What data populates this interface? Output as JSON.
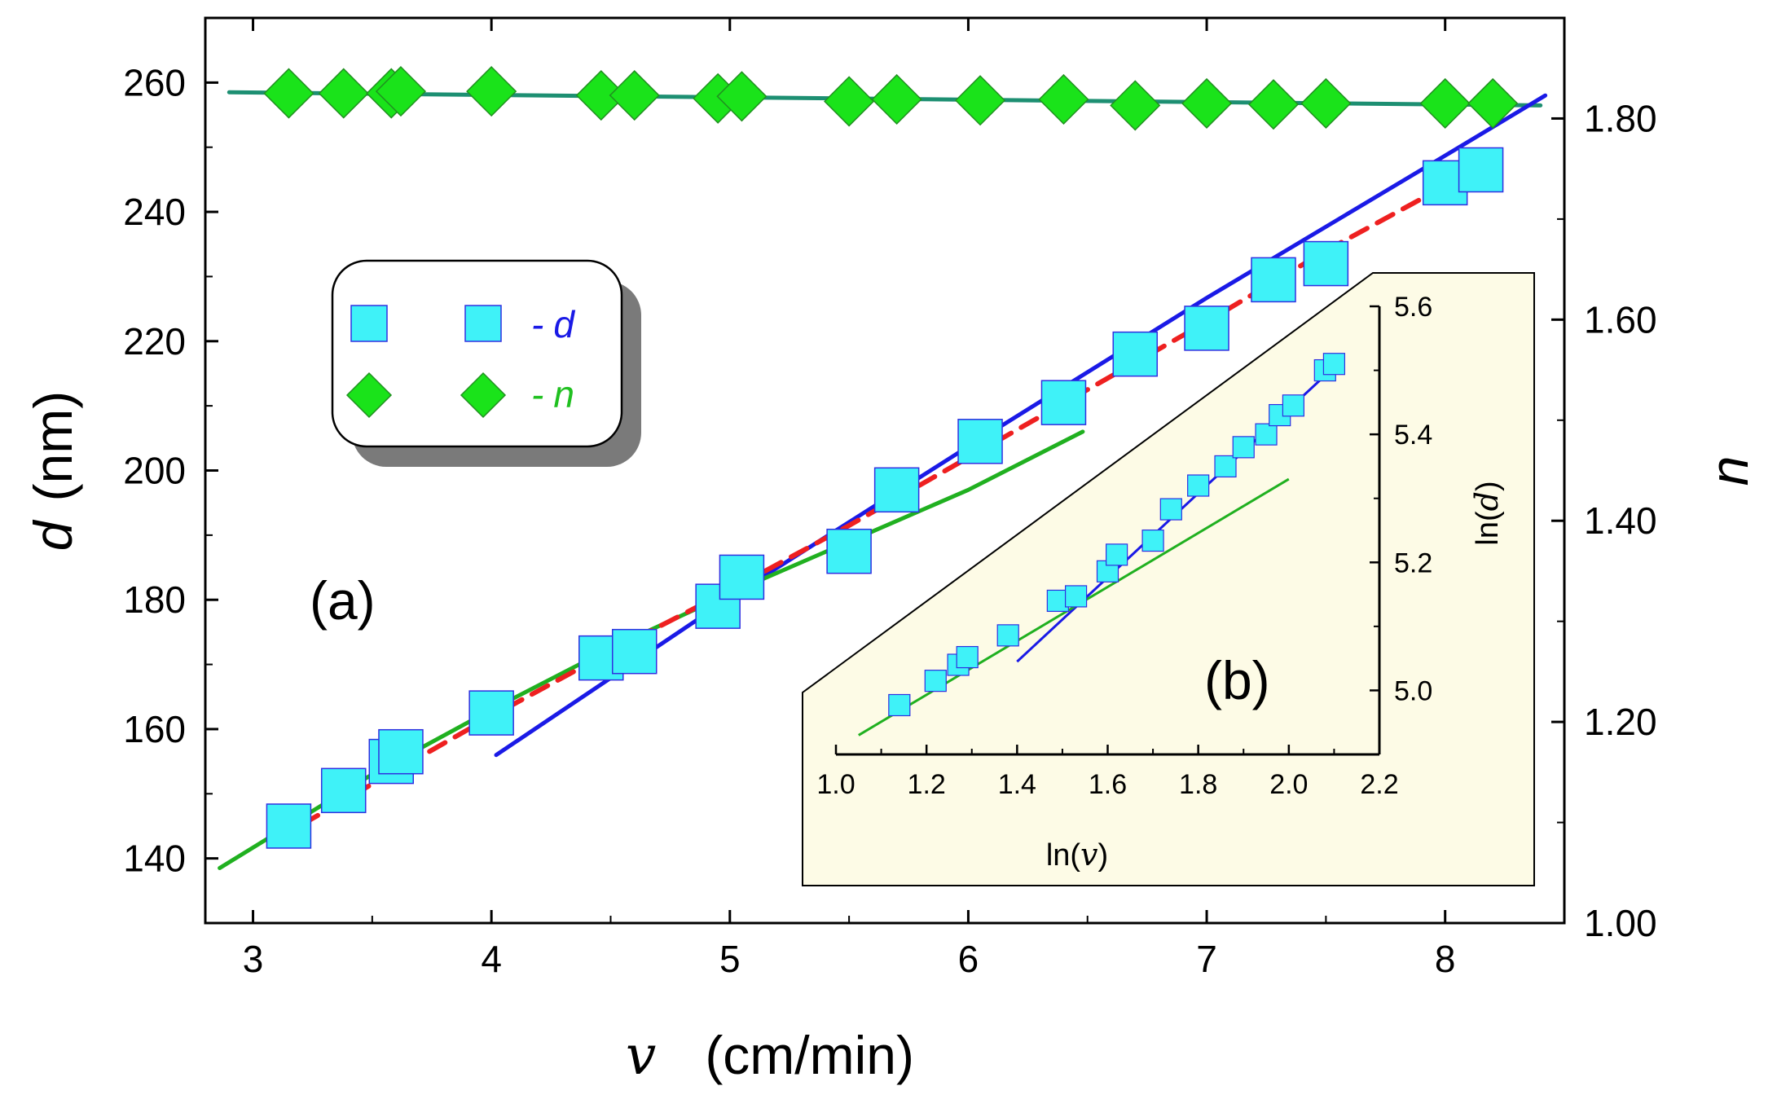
{
  "colors": {
    "d_marker_fill": "#3ff2f8",
    "d_marker_stroke": "#3030e0",
    "n_marker_fill": "#1ae31a",
    "n_marker_stroke": "#209020",
    "blue_fit": "#1a1ae6",
    "green_fit": "#20b020",
    "red_fit": "#ee2020",
    "n_fit": "#1d8f72",
    "inset_bg": "#fdfbe6",
    "legend_shadow": "#7a7a7a"
  },
  "chart_data": [
    {
      "panel": "a",
      "type": "scatter",
      "label": "(a)",
      "xlabel": {
        "symbol": "v",
        "unit": "(cm/min)"
      },
      "ylabel": {
        "symbol": "d",
        "unit": "(nm)"
      },
      "y2label": {
        "symbol": "n"
      },
      "xlim": [
        2.8,
        8.5
      ],
      "ylim": [
        130,
        270
      ],
      "y2lim": [
        1.0,
        1.9
      ],
      "xticks": [
        "3",
        "4",
        "5",
        "6",
        "7",
        "8"
      ],
      "yticks": [
        "140",
        "160",
        "180",
        "200",
        "220",
        "240",
        "260"
      ],
      "y2ticks": [
        "1.00",
        "1.20",
        "1.40",
        "1.60",
        "1.80"
      ],
      "series": [
        {
          "name": "d",
          "axis": "left",
          "marker": "square",
          "x": [
            3.15,
            3.38,
            3.58,
            3.62,
            4.0,
            4.46,
            4.6,
            4.95,
            5.05,
            5.5,
            5.7,
            6.05,
            6.4,
            6.7,
            7.0,
            7.28,
            7.5,
            8.0,
            8.15
          ],
          "y": [
            145,
            150.5,
            155,
            156.5,
            162.5,
            171,
            172,
            179,
            183.5,
            187.5,
            197,
            204.5,
            210.5,
            218,
            222,
            229.5,
            232,
            244.5,
            246.5
          ]
        },
        {
          "name": "n",
          "axis": "right",
          "marker": "diamond",
          "x": [
            3.15,
            3.38,
            3.58,
            3.62,
            4.0,
            4.46,
            4.6,
            4.95,
            5.05,
            5.5,
            5.7,
            6.05,
            6.4,
            6.7,
            7.0,
            7.28,
            7.5,
            8.0,
            8.2
          ],
          "y": [
            1.825,
            1.825,
            1.825,
            1.827,
            1.827,
            1.823,
            1.823,
            1.82,
            1.822,
            1.817,
            1.819,
            1.818,
            1.819,
            1.813,
            1.815,
            1.814,
            1.815,
            1.815,
            1.815
          ]
        },
        {
          "name": "n fit",
          "axis": "right",
          "type": "line",
          "style": "solid",
          "x": [
            2.9,
            8.4
          ],
          "y": [
            1.826,
            1.813
          ]
        },
        {
          "name": "blue fit",
          "axis": "left",
          "type": "line",
          "style": "solid",
          "x": [
            4.02,
            5.0,
            6.0,
            7.0,
            8.0,
            8.42
          ],
          "y": [
            156,
            180.3,
            203.7,
            226.7,
            248.7,
            258
          ]
        },
        {
          "name": "green fit",
          "axis": "left",
          "type": "line",
          "style": "solid",
          "x": [
            2.86,
            3.5,
            4.0,
            4.5,
            5.0,
            5.5,
            6.0,
            6.48
          ],
          "y": [
            138.5,
            153,
            163,
            172.5,
            181,
            189,
            197,
            206
          ]
        },
        {
          "name": "red dashed fit",
          "axis": "left",
          "type": "line",
          "style": "dashed",
          "x": [
            3.1,
            3.5,
            4.0,
            4.5,
            5.0,
            5.5,
            6.0,
            6.5,
            7.0,
            7.5,
            8.0,
            8.25
          ],
          "y": [
            143,
            151.5,
            162,
            172,
            181.5,
            191.5,
            202,
            212.5,
            223,
            234,
            244,
            249
          ]
        }
      ],
      "legend": [
        {
          "marker": "square",
          "dash": "-",
          "symbol": "d",
          "color": "#1a1ae6"
        },
        {
          "marker": "diamond",
          "dash": "-",
          "symbol": "n",
          "color": "#20c020"
        }
      ]
    },
    {
      "panel": "b",
      "type": "scatter",
      "label": "(b)",
      "xlabel": {
        "prefix": "ln(",
        "symbol": "v",
        "suffix": ")"
      },
      "ylabel": {
        "prefix": "ln(",
        "symbol": "d",
        "suffix": ")"
      },
      "xlim": [
        1.0,
        2.2
      ],
      "ylim": [
        4.9,
        5.6
      ],
      "xticks": [
        "1.0",
        "1.2",
        "1.4",
        "1.6",
        "1.8",
        "2.0",
        "2.2"
      ],
      "yticks": [
        "5.0",
        "5.2",
        "5.4",
        "5.6"
      ],
      "series": [
        {
          "name": "ln d",
          "marker": "square",
          "x": [
            1.14,
            1.22,
            1.27,
            1.29,
            1.38,
            1.49,
            1.53,
            1.6,
            1.62,
            1.7,
            1.74,
            1.8,
            1.86,
            1.9,
            1.95,
            1.98,
            2.01,
            2.08,
            2.1
          ],
          "y": [
            4.977,
            5.015,
            5.04,
            5.052,
            5.086,
            5.14,
            5.147,
            5.186,
            5.212,
            5.234,
            5.283,
            5.32,
            5.35,
            5.38,
            5.4,
            5.43,
            5.445,
            5.5,
            5.51
          ]
        },
        {
          "name": "blue fit",
          "type": "line",
          "x": [
            1.4,
            2.1
          ],
          "y": [
            5.045,
            5.505
          ]
        },
        {
          "name": "green fit",
          "type": "line",
          "x": [
            1.05,
            2.0
          ],
          "y": [
            4.93,
            5.33
          ]
        }
      ]
    }
  ]
}
